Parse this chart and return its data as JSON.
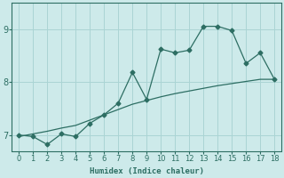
{
  "xlabel": "Humidex (Indice chaleur)",
  "background_color": "#cdeaea",
  "line_color": "#2d6e63",
  "x_data": [
    0,
    1,
    2,
    3,
    4,
    5,
    6,
    7,
    8,
    9,
    10,
    11,
    12,
    13,
    14,
    15,
    16,
    17,
    18
  ],
  "y_zigzag": [
    7.0,
    6.97,
    6.82,
    7.02,
    6.97,
    7.22,
    7.38,
    7.6,
    8.18,
    7.67,
    8.62,
    8.55,
    8.6,
    9.05,
    9.05,
    8.97,
    8.35,
    8.55,
    8.05
  ],
  "y_trend": [
    6.97,
    7.02,
    7.07,
    7.13,
    7.18,
    7.28,
    7.38,
    7.48,
    7.58,
    7.65,
    7.72,
    7.78,
    7.83,
    7.88,
    7.93,
    7.97,
    8.01,
    8.05,
    8.05
  ],
  "xlim": [
    -0.5,
    18.5
  ],
  "ylim": [
    6.7,
    9.5
  ],
  "yticks": [
    7,
    8,
    9
  ],
  "xticks": [
    0,
    1,
    2,
    3,
    4,
    5,
    6,
    7,
    8,
    9,
    10,
    11,
    12,
    13,
    14,
    15,
    16,
    17,
    18
  ],
  "grid_color": "#aad4d4",
  "marker": "D",
  "markersize": 2.5,
  "linewidth": 0.9
}
